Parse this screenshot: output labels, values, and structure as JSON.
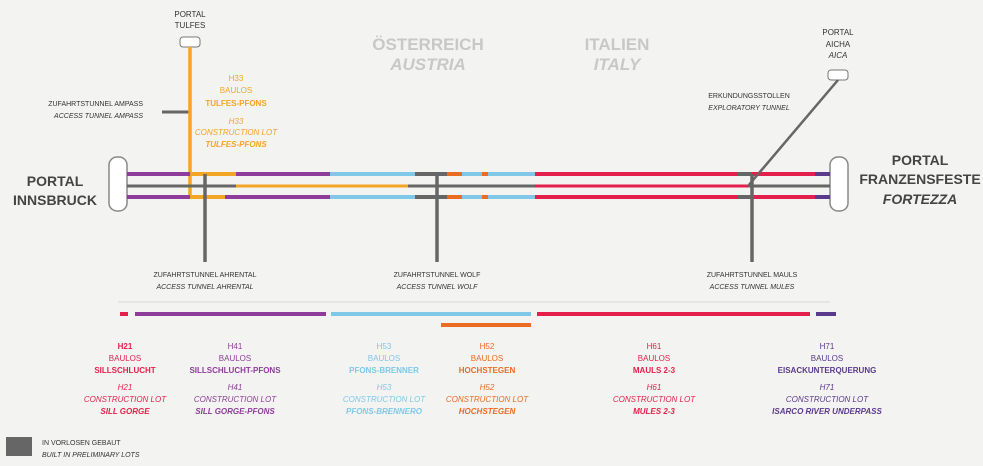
{
  "countries": {
    "austria_de": "ÖSTERREICH",
    "austria_en": "AUSTRIA",
    "italy_de": "ITALIEN",
    "italy_en": "ITALY"
  },
  "portals": {
    "tulfes": {
      "line1": "PORTAL",
      "line2": "TULFES"
    },
    "aicha": {
      "line1": "PORTAL",
      "line2": "AICHA",
      "line3": "AICA"
    },
    "innsbruck": {
      "line1": "PORTAL",
      "line2": "INNSBRUCK"
    },
    "franzensfeste": {
      "line1": "PORTAL",
      "line2": "FRANZENSFESTE",
      "line3": "FORTEZZA"
    }
  },
  "tunnels": {
    "ampass": {
      "de": "ZUFAHRTSTUNNEL AMPASS",
      "en": "ACCESS TUNNEL AMPASS"
    },
    "ahrental": {
      "de": "ZUFAHRTSTUNNEL AHRENTAL",
      "en": "ACCESS TUNNEL AHRENTAL"
    },
    "wolf": {
      "de": "ZUFAHRTSTUNNEL WOLF",
      "en": "ACCESS TUNNEL WOLF"
    },
    "mauls": {
      "de": "ZUFAHRTSTUNNEL MAULS",
      "en": "ACCESS TUNNEL MULES"
    },
    "exploratory": {
      "de": "ERKUNDUNGSSTOLLEN",
      "en": "EXPLORATORY TUNNEL"
    }
  },
  "h33": {
    "code": "H33",
    "baulos": "BAULOS",
    "name_de": "TULFES-PFONS",
    "code2": "H33",
    "lot": "CONSTRUCTION LOT",
    "name_en": "TULFES-PFONS"
  },
  "lots": [
    {
      "code": "H21",
      "baulos": "BAULOS",
      "name_de": "SILLSCHLUCHT",
      "code2": "H21",
      "lot": "CONSTRUCTION LOT",
      "name_en": "SILL GORGE"
    },
    {
      "code": "H41",
      "baulos": "BAULOS",
      "name_de": "SILLSCHLUCHT-PFONS",
      "code2": "H41",
      "lot": "CONSTRUCTION LOT",
      "name_en": "SILL GORGE-PFONS"
    },
    {
      "code": "H53",
      "baulos": "BAULOS",
      "name_de": "PFONS-BRENNER",
      "code2": "H53",
      "lot": "CONSTRUCTION LOT",
      "name_en": "PFONS-BRENNERO"
    },
    {
      "code": "H52",
      "baulos": "BAULOS",
      "name_de": "HOCHSTEGEN",
      "code2": "H52",
      "lot": "CONSTRUCTION LOT",
      "name_en": "HOCHSTEGEN"
    },
    {
      "code": "H61",
      "baulos": "BAULOS",
      "name_de": "MAULS 2-3",
      "code2": "H61",
      "lot": "CONSTRUCTION LOT",
      "name_en": "MULES 2-3"
    },
    {
      "code": "H71",
      "baulos": "BAULOS",
      "name_de": "EISACKUNTERQUERUNG",
      "code2": "H71",
      "lot": "CONSTRUCTION LOT",
      "name_en": "ISARCO RIVER UNDERPASS"
    }
  ],
  "legend": {
    "de": "IN VORLOSEN GEBAUT",
    "en": "BUILT IN PRELIMINARY LOTS"
  },
  "colors": {
    "h21": "#e41f4c",
    "h41": "#8e3d9a",
    "h33": "#f3a526",
    "h53": "#7fc8e8",
    "h52": "#ec6b22",
    "h61": "#e41f4c",
    "h71": "#5a3a8c",
    "preliminary": "#666666",
    "country": "#c8c8c8"
  }
}
